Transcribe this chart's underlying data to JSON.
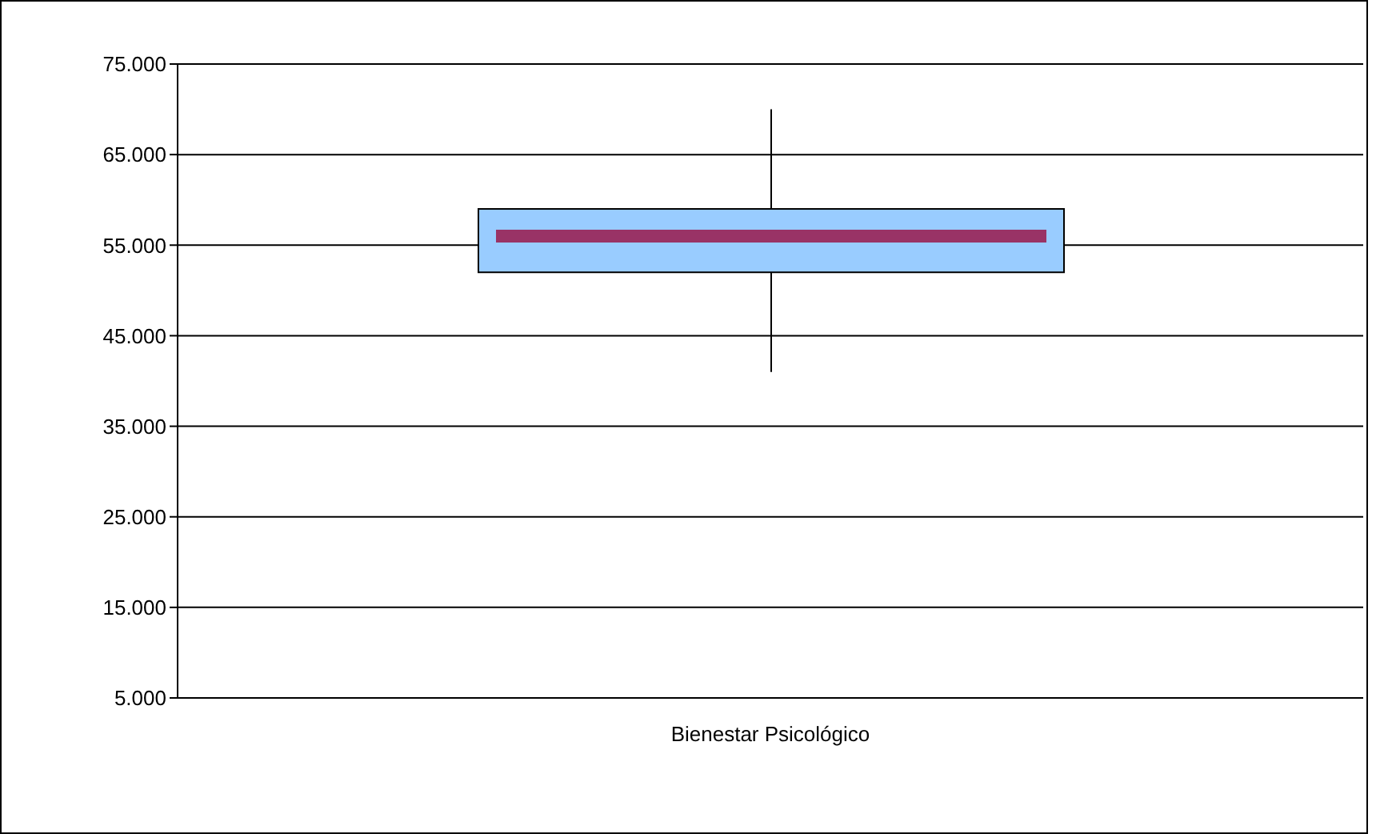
{
  "chart_data": {
    "type": "box",
    "categories": [
      "Bienestar Psicológico"
    ],
    "color": "#99ccff",
    "boxes": [
      {
        "low": 41,
        "q1": 52,
        "median": 56,
        "q3": 59,
        "high": 70
      }
    ],
    "ylim": [
      5,
      75
    ],
    "yticks": [
      {
        "value": 5,
        "label": "5.000"
      },
      {
        "value": 15,
        "label": "15.000"
      },
      {
        "value": 25,
        "label": "25.000"
      },
      {
        "value": 35,
        "label": "35.000"
      },
      {
        "value": 45,
        "label": "45.000"
      },
      {
        "value": 55,
        "label": "55.000"
      },
      {
        "value": 65,
        "label": "65.000"
      },
      {
        "value": 75,
        "label": "75.000"
      }
    ],
    "grid": "y"
  }
}
